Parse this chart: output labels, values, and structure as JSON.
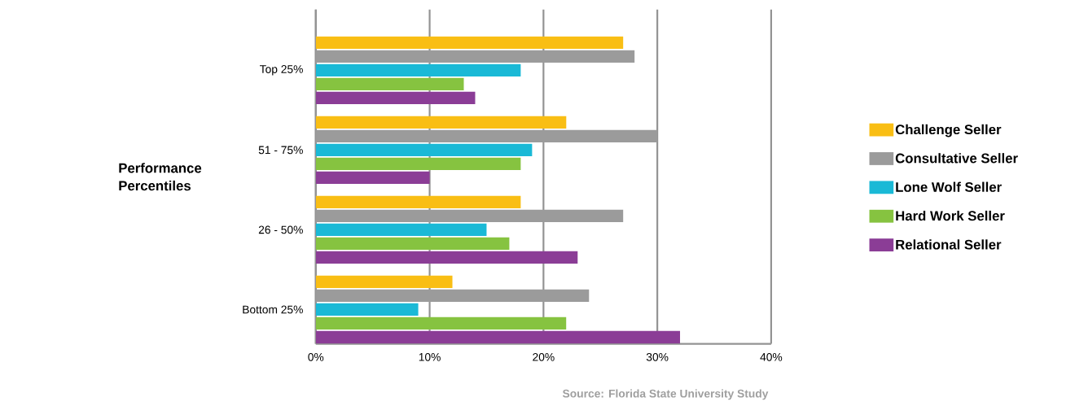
{
  "chart_data": {
    "type": "bar",
    "orientation": "horizontal",
    "ylabel": "Performance Percentiles",
    "categories": [
      "Top 25%",
      "51 - 75%",
      "26 - 50%",
      "Bottom 25%"
    ],
    "series": [
      {
        "name": "Challenge Seller",
        "color": "#f9be14",
        "values": [
          27,
          22,
          18,
          12
        ]
      },
      {
        "name": "Consultative Seller",
        "color": "#9b9b9b",
        "values": [
          28,
          30,
          27,
          24
        ]
      },
      {
        "name": "Lone Wolf Seller",
        "color": "#1ab9d6",
        "values": [
          18,
          19,
          15,
          9
        ]
      },
      {
        "name": "Hard Work Seller",
        "color": "#86c340",
        "values": [
          13,
          18,
          17,
          22
        ]
      },
      {
        "name": "Relational Seller",
        "color": "#8b3d96",
        "values": [
          14,
          10,
          23,
          32
        ]
      }
    ],
    "xlim": [
      0,
      40
    ],
    "xticks": [
      {
        "value": 0,
        "label": "0%"
      },
      {
        "value": 10,
        "label": "10%"
      },
      {
        "value": 20,
        "label": "20%"
      },
      {
        "value": 30,
        "label": "30%"
      },
      {
        "value": 40,
        "label": "40%"
      }
    ],
    "grid": "x",
    "legend": "right",
    "annotations": [
      "Source: Florida State University Study"
    ]
  }
}
